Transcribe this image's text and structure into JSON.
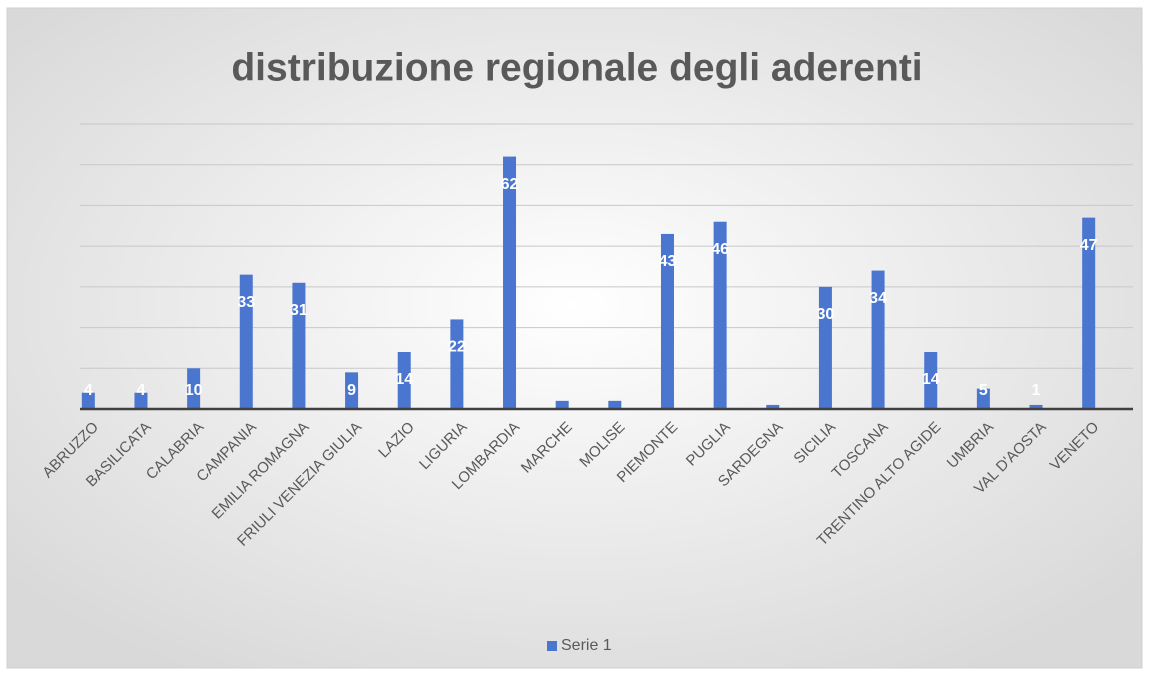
{
  "chart_data": {
    "type": "bar",
    "title": "distribuzione regionale degli aderenti",
    "categories": [
      "ABRUZZO",
      "BASILICATA",
      "CALABRIA",
      "CAMPANIA",
      "EMILIA ROMAGNA",
      "FRIULI VENEZIA GIULIA",
      "LAZIO",
      "LIGURIA",
      "LOMBARDIA",
      "MARCHE",
      "MOLISE",
      "PIEMONTE",
      "PUGLIA",
      "SARDEGNA",
      "SICILIA",
      "TOSCANA",
      "TRENTINO ALTO AGIDE",
      "UMBRIA",
      "VAL D'AOSTA",
      "VENETO"
    ],
    "series": [
      {
        "name": "Serie 1",
        "color": "#4a76d0",
        "values": [
          4,
          4,
          10,
          33,
          31,
          9,
          14,
          22,
          62,
          2,
          2,
          43,
          46,
          1,
          30,
          34,
          14,
          5,
          1,
          47
        ],
        "value_labels": [
          "4",
          "4",
          "10",
          "33",
          "31",
          "9",
          "14",
          "22",
          "62",
          null,
          null,
          "43",
          "46",
          null,
          "30",
          "34",
          "14",
          "5",
          "1",
          "47"
        ]
      }
    ],
    "ylim": [
      0,
      70
    ],
    "yticks": [
      0,
      10,
      20,
      30,
      40,
      50,
      60,
      70
    ],
    "grid": true,
    "legend": "bottom"
  }
}
